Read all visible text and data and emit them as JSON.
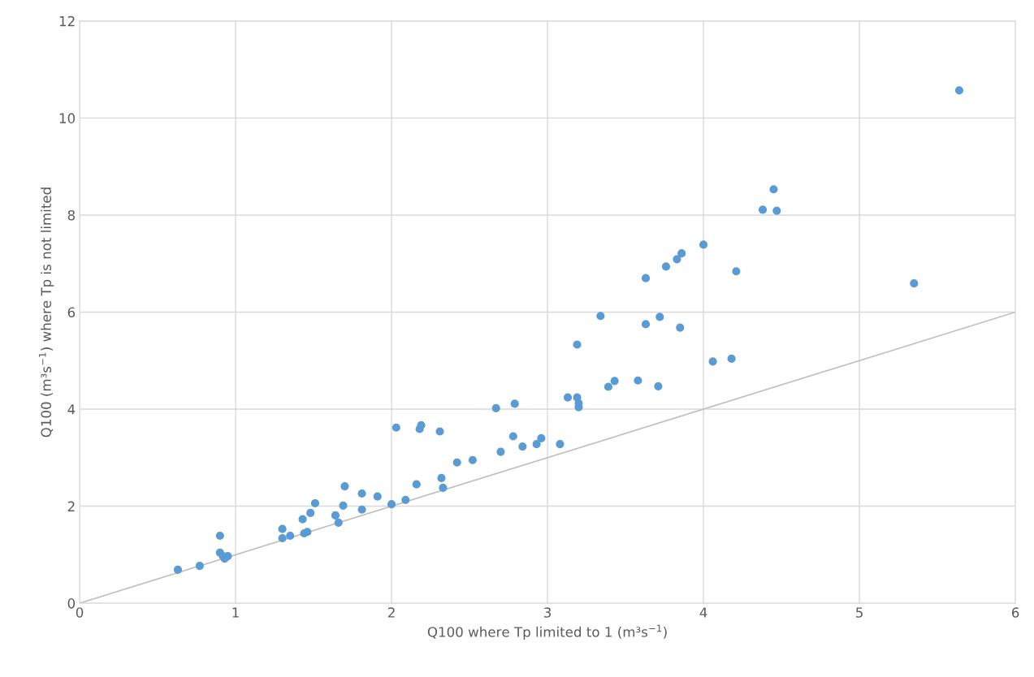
{
  "chart_data": {
    "type": "scatter",
    "xlabel": "Q100 where Tp limited to 1 (m³s$^{−1}$)",
    "ylabel": "Q100 (m³s$^{−1}$) where Tp is not limited",
    "xlim": [
      0,
      6
    ],
    "ylim": [
      0,
      12
    ],
    "xticks": [
      0,
      1,
      2,
      3,
      4,
      5,
      6
    ],
    "yticks": [
      0,
      2,
      4,
      6,
      8,
      10,
      12
    ],
    "grid": true,
    "legend": false,
    "series": [
      {
        "color": "#5b9bd5",
        "marker": "circle",
        "x": [
          0.63,
          0.77,
          0.9,
          0.9,
          0.92,
          0.93,
          0.95,
          1.3,
          1.3,
          1.35,
          1.43,
          1.44,
          1.46,
          1.48,
          1.51,
          1.64,
          1.66,
          1.69,
          1.7,
          1.81,
          1.81,
          1.91,
          2.0,
          2.03,
          2.09,
          2.16,
          2.18,
          2.19,
          2.31,
          2.32,
          2.33,
          2.42,
          2.52,
          2.67,
          2.7,
          2.78,
          2.79,
          2.84,
          2.93,
          2.96,
          3.08,
          3.13,
          3.19,
          3.19,
          3.2,
          3.2,
          3.34,
          3.39,
          3.43,
          3.58,
          3.63,
          3.63,
          3.71,
          3.72,
          3.76,
          3.83,
          3.85,
          3.86,
          4.0,
          4.06,
          4.18,
          4.21,
          4.38,
          4.45,
          4.47,
          5.35,
          5.64
        ],
        "values": [
          0.69,
          0.77,
          1.39,
          1.04,
          0.97,
          0.92,
          0.97,
          1.53,
          1.34,
          1.39,
          1.73,
          1.44,
          1.47,
          1.86,
          2.06,
          1.81,
          1.66,
          2.01,
          2.41,
          2.26,
          1.93,
          2.2,
          2.04,
          3.62,
          2.13,
          2.45,
          3.59,
          3.67,
          3.54,
          2.58,
          2.38,
          2.9,
          2.95,
          4.02,
          3.12,
          3.44,
          4.11,
          3.23,
          3.28,
          3.4,
          3.28,
          4.24,
          5.33,
          4.24,
          4.12,
          4.04,
          5.92,
          4.46,
          4.58,
          4.59,
          6.7,
          5.75,
          4.47,
          5.9,
          6.94,
          7.09,
          5.68,
          7.21,
          7.39,
          4.98,
          5.04,
          6.84,
          8.11,
          8.53,
          8.09,
          6.59,
          10.57
        ]
      },
      {
        "type": "line",
        "color": "#bfbfbf",
        "marker": "none",
        "line_style": "solid",
        "x": [
          0,
          6
        ],
        "values": [
          0,
          6
        ]
      }
    ]
  }
}
